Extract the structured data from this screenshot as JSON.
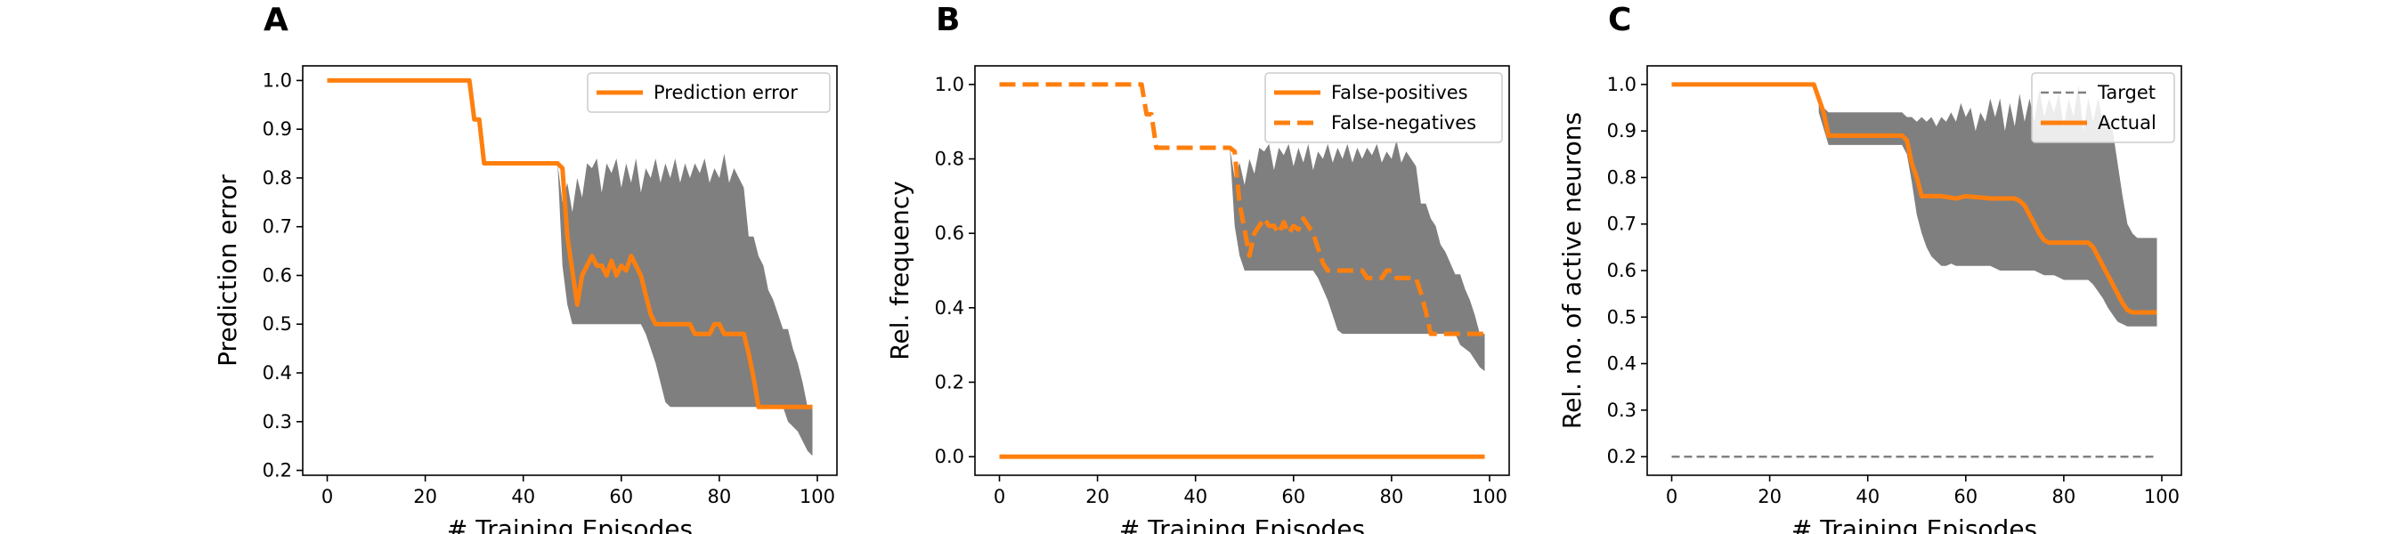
{
  "colors": {
    "accent": "#ff7f0e",
    "band": "#7f7f7f",
    "target": "#808080",
    "axis": "#000000"
  },
  "chart_data": [
    {
      "panel_label": "A",
      "type": "line",
      "xlabel": "# Training Episodes",
      "ylabel": "Prediction error",
      "xlim": [
        -5,
        104
      ],
      "ylim": [
        0.19,
        1.03
      ],
      "xticks": [
        0,
        20,
        40,
        60,
        80,
        100
      ],
      "yticks": [
        0.2,
        0.3,
        0.4,
        0.5,
        0.6,
        0.7,
        0.8,
        0.9,
        1.0
      ],
      "legend": {
        "placement": "top-right",
        "entries": [
          {
            "label": "Prediction error",
            "style": "solid"
          }
        ]
      },
      "series": [
        {
          "name": "Prediction error",
          "style": "solid",
          "x": [
            0,
            29,
            30,
            31,
            32,
            33,
            47,
            48,
            49,
            50,
            51,
            52,
            53,
            54,
            55,
            56,
            57,
            58,
            59,
            60,
            61,
            62,
            63,
            64,
            65,
            66,
            67,
            68,
            69,
            70,
            71,
            72,
            73,
            74,
            75,
            76,
            77,
            78,
            79,
            80,
            81,
            82,
            83,
            84,
            85,
            86,
            87,
            88,
            89,
            90,
            91,
            92,
            93,
            94,
            95,
            96,
            97,
            98,
            99
          ],
          "y": [
            1.0,
            1.0,
            0.92,
            0.92,
            0.83,
            0.83,
            0.83,
            0.82,
            0.68,
            0.61,
            0.54,
            0.6,
            0.62,
            0.64,
            0.62,
            0.62,
            0.6,
            0.63,
            0.6,
            0.62,
            0.61,
            0.64,
            0.62,
            0.6,
            0.56,
            0.52,
            0.5,
            0.5,
            0.5,
            0.5,
            0.5,
            0.5,
            0.5,
            0.5,
            0.48,
            0.48,
            0.48,
            0.48,
            0.5,
            0.5,
            0.48,
            0.48,
            0.48,
            0.48,
            0.48,
            0.44,
            0.39,
            0.33,
            0.33,
            0.33,
            0.33,
            0.33,
            0.33,
            0.33,
            0.33,
            0.33,
            0.33,
            0.33,
            0.33
          ]
        }
      ],
      "band": {
        "x": [
          47,
          48,
          49,
          50,
          51,
          52,
          53,
          54,
          55,
          56,
          57,
          58,
          59,
          60,
          61,
          62,
          63,
          64,
          65,
          66,
          67,
          68,
          69,
          70,
          71,
          72,
          73,
          74,
          75,
          76,
          77,
          78,
          79,
          80,
          81,
          82,
          83,
          84,
          85,
          86,
          87,
          88,
          89,
          90,
          91,
          92,
          93,
          94,
          95,
          96,
          97,
          98,
          99
        ],
        "upper": [
          0.83,
          0.75,
          0.79,
          0.73,
          0.8,
          0.76,
          0.83,
          0.82,
          0.84,
          0.77,
          0.83,
          0.81,
          0.84,
          0.78,
          0.83,
          0.79,
          0.84,
          0.77,
          0.82,
          0.8,
          0.84,
          0.79,
          0.83,
          0.8,
          0.84,
          0.79,
          0.83,
          0.8,
          0.83,
          0.81,
          0.84,
          0.79,
          0.82,
          0.8,
          0.85,
          0.79,
          0.82,
          0.8,
          0.78,
          0.68,
          0.68,
          0.64,
          0.62,
          0.57,
          0.55,
          0.52,
          0.49,
          0.49,
          0.45,
          0.42,
          0.38,
          0.33,
          0.33
        ],
        "lower": [
          0.83,
          0.62,
          0.54,
          0.5,
          0.5,
          0.5,
          0.5,
          0.5,
          0.5,
          0.5,
          0.5,
          0.5,
          0.5,
          0.5,
          0.5,
          0.5,
          0.5,
          0.5,
          0.48,
          0.45,
          0.42,
          0.38,
          0.34,
          0.33,
          0.33,
          0.33,
          0.33,
          0.33,
          0.33,
          0.33,
          0.33,
          0.33,
          0.33,
          0.33,
          0.33,
          0.33,
          0.33,
          0.33,
          0.33,
          0.33,
          0.33,
          0.33,
          0.33,
          0.33,
          0.33,
          0.33,
          0.33,
          0.3,
          0.29,
          0.28,
          0.26,
          0.24,
          0.23
        ]
      }
    },
    {
      "panel_label": "B",
      "type": "line",
      "xlabel": "# Training Episodes",
      "ylabel": "Rel. frequency",
      "xlim": [
        -5,
        104
      ],
      "ylim": [
        -0.05,
        1.05
      ],
      "xticks": [
        0,
        20,
        40,
        60,
        80,
        100
      ],
      "yticks": [
        0.0,
        0.2,
        0.4,
        0.6,
        0.8,
        1.0
      ],
      "legend": {
        "placement": "top-right",
        "entries": [
          {
            "label": "False-positives",
            "style": "solid"
          },
          {
            "label": "False-negatives",
            "style": "dashed"
          }
        ]
      },
      "series": [
        {
          "name": "False-positives",
          "style": "solid",
          "x": [
            0,
            99
          ],
          "y": [
            0.0,
            0.0
          ]
        },
        {
          "name": "False-negatives",
          "style": "dashed",
          "x": [
            0,
            29,
            30,
            31,
            32,
            33,
            47,
            48,
            49,
            50,
            51,
            52,
            53,
            54,
            55,
            56,
            57,
            58,
            59,
            60,
            61,
            62,
            63,
            64,
            65,
            66,
            67,
            68,
            69,
            70,
            71,
            72,
            73,
            74,
            75,
            76,
            77,
            78,
            79,
            80,
            81,
            82,
            83,
            84,
            85,
            86,
            87,
            88,
            89,
            90,
            91,
            92,
            93,
            94,
            95,
            96,
            97,
            98,
            99
          ],
          "y": [
            1.0,
            1.0,
            0.92,
            0.92,
            0.83,
            0.83,
            0.83,
            0.82,
            0.68,
            0.61,
            0.54,
            0.6,
            0.62,
            0.64,
            0.62,
            0.62,
            0.6,
            0.63,
            0.6,
            0.62,
            0.61,
            0.64,
            0.62,
            0.6,
            0.56,
            0.52,
            0.5,
            0.5,
            0.5,
            0.5,
            0.5,
            0.5,
            0.5,
            0.5,
            0.48,
            0.48,
            0.48,
            0.48,
            0.5,
            0.5,
            0.48,
            0.48,
            0.48,
            0.48,
            0.48,
            0.44,
            0.39,
            0.33,
            0.33,
            0.33,
            0.33,
            0.33,
            0.33,
            0.33,
            0.33,
            0.33,
            0.33,
            0.33,
            0.33
          ]
        }
      ],
      "band": {
        "x": [
          47,
          48,
          49,
          50,
          51,
          52,
          53,
          54,
          55,
          56,
          57,
          58,
          59,
          60,
          61,
          62,
          63,
          64,
          65,
          66,
          67,
          68,
          69,
          70,
          71,
          72,
          73,
          74,
          75,
          76,
          77,
          78,
          79,
          80,
          81,
          82,
          83,
          84,
          85,
          86,
          87,
          88,
          89,
          90,
          91,
          92,
          93,
          94,
          95,
          96,
          97,
          98,
          99
        ],
        "upper": [
          0.83,
          0.75,
          0.79,
          0.73,
          0.8,
          0.76,
          0.83,
          0.82,
          0.84,
          0.77,
          0.83,
          0.81,
          0.84,
          0.78,
          0.83,
          0.79,
          0.84,
          0.77,
          0.82,
          0.8,
          0.84,
          0.79,
          0.83,
          0.8,
          0.84,
          0.79,
          0.83,
          0.8,
          0.83,
          0.81,
          0.84,
          0.79,
          0.82,
          0.8,
          0.85,
          0.79,
          0.82,
          0.8,
          0.78,
          0.68,
          0.68,
          0.64,
          0.62,
          0.57,
          0.55,
          0.52,
          0.49,
          0.49,
          0.45,
          0.42,
          0.38,
          0.33,
          0.33
        ],
        "lower": [
          0.83,
          0.62,
          0.54,
          0.5,
          0.5,
          0.5,
          0.5,
          0.5,
          0.5,
          0.5,
          0.5,
          0.5,
          0.5,
          0.5,
          0.5,
          0.5,
          0.5,
          0.5,
          0.48,
          0.45,
          0.42,
          0.38,
          0.34,
          0.33,
          0.33,
          0.33,
          0.33,
          0.33,
          0.33,
          0.33,
          0.33,
          0.33,
          0.33,
          0.33,
          0.33,
          0.33,
          0.33,
          0.33,
          0.33,
          0.33,
          0.33,
          0.33,
          0.33,
          0.33,
          0.33,
          0.33,
          0.33,
          0.3,
          0.29,
          0.28,
          0.26,
          0.24,
          0.23
        ]
      }
    },
    {
      "panel_label": "C",
      "type": "line",
      "xlabel": "# Training Episodes",
      "ylabel": "Rel. no. of active neurons",
      "xlim": [
        -5,
        104
      ],
      "ylim": [
        0.16,
        1.04
      ],
      "xticks": [
        0,
        20,
        40,
        60,
        80,
        100
      ],
      "yticks": [
        0.2,
        0.3,
        0.4,
        0.5,
        0.6,
        0.7,
        0.8,
        0.9,
        1.0
      ],
      "legend": {
        "placement": "top-right",
        "entries": [
          {
            "label": "Target",
            "style": "thin-dashed"
          },
          {
            "label": "Actual",
            "style": "solid"
          }
        ]
      },
      "series": [
        {
          "name": "Target",
          "style": "thin-dashed",
          "x": [
            0,
            99
          ],
          "y": [
            0.2,
            0.2
          ]
        },
        {
          "name": "Actual",
          "style": "solid",
          "x": [
            0,
            29,
            30,
            31,
            32,
            33,
            47,
            48,
            49,
            50,
            51,
            52,
            55,
            58,
            60,
            65,
            70,
            71,
            72,
            73,
            74,
            75,
            76,
            77,
            85,
            86,
            87,
            88,
            89,
            90,
            91,
            92,
            93,
            94,
            95,
            96,
            97,
            98,
            99
          ],
          "y": [
            1.0,
            1.0,
            0.97,
            0.94,
            0.89,
            0.89,
            0.89,
            0.88,
            0.83,
            0.8,
            0.76,
            0.76,
            0.76,
            0.755,
            0.76,
            0.755,
            0.755,
            0.75,
            0.74,
            0.72,
            0.7,
            0.68,
            0.665,
            0.66,
            0.66,
            0.65,
            0.63,
            0.61,
            0.59,
            0.57,
            0.55,
            0.53,
            0.515,
            0.51,
            0.51,
            0.51,
            0.51,
            0.51,
            0.51
          ]
        }
      ],
      "band": {
        "x": [
          30,
          32,
          47,
          48,
          49,
          50,
          51,
          52,
          53,
          54,
          55,
          56,
          57,
          58,
          59,
          60,
          61,
          62,
          63,
          64,
          65,
          66,
          67,
          68,
          69,
          70,
          71,
          72,
          73,
          74,
          75,
          76,
          77,
          78,
          79,
          80,
          81,
          82,
          83,
          84,
          85,
          86,
          87,
          88,
          89,
          90,
          91,
          92,
          93,
          94,
          95,
          96,
          97,
          98,
          99
        ],
        "upper": [
          0.96,
          0.94,
          0.94,
          0.93,
          0.93,
          0.92,
          0.93,
          0.92,
          0.93,
          0.91,
          0.93,
          0.92,
          0.94,
          0.92,
          0.96,
          0.93,
          0.95,
          0.9,
          0.94,
          0.92,
          0.97,
          0.93,
          0.97,
          0.9,
          0.96,
          0.91,
          0.98,
          0.92,
          0.97,
          0.92,
          0.99,
          0.93,
          0.97,
          0.94,
          0.98,
          0.91,
          0.97,
          0.93,
          1.0,
          0.9,
          0.97,
          0.92,
          0.97,
          0.92,
          0.93,
          0.9,
          0.83,
          0.76,
          0.7,
          0.68,
          0.67,
          0.67,
          0.67,
          0.67,
          0.67
        ],
        "lower": [
          0.94,
          0.87,
          0.87,
          0.85,
          0.79,
          0.72,
          0.68,
          0.65,
          0.63,
          0.62,
          0.61,
          0.61,
          0.615,
          0.61,
          0.61,
          0.61,
          0.61,
          0.61,
          0.61,
          0.61,
          0.61,
          0.605,
          0.6,
          0.6,
          0.6,
          0.6,
          0.6,
          0.6,
          0.6,
          0.6,
          0.595,
          0.59,
          0.59,
          0.59,
          0.585,
          0.58,
          0.58,
          0.58,
          0.58,
          0.58,
          0.58,
          0.57,
          0.555,
          0.54,
          0.52,
          0.505,
          0.49,
          0.485,
          0.48,
          0.48,
          0.48,
          0.48,
          0.48,
          0.48,
          0.48
        ]
      }
    }
  ]
}
